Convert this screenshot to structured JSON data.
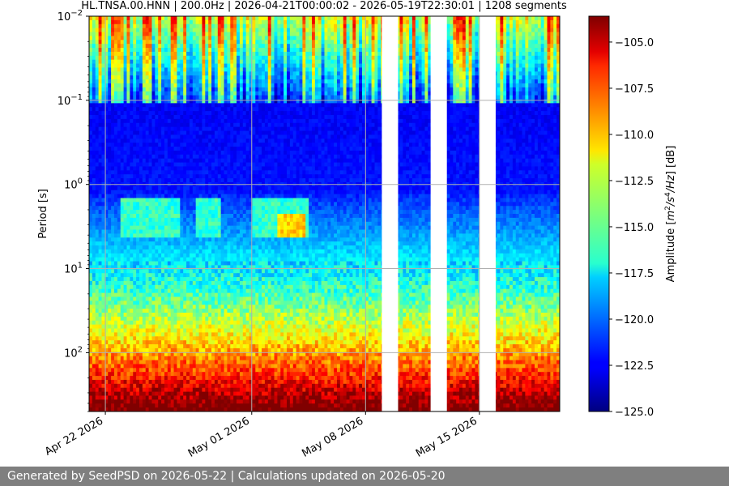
{
  "chart_data": {
    "type": "heatmap",
    "title": "HL.TNSA.00.HNN | 200.0Hz | 2026-04-21T00:00:02 - 2026-05-19T22:30:01 | 1208 segments",
    "xlabel": "",
    "ylabel": "Period [s]",
    "x_range": [
      "2026-04-21T00:00:02",
      "2026-05-19T22:30:01"
    ],
    "y_scale": "log",
    "y_inverted": true,
    "ylim": [
      0.01,
      500
    ],
    "x_ticks": [
      {
        "date": "2026-04-22",
        "label": "Apr 22 2026"
      },
      {
        "date": "2026-05-01",
        "label": "May 01 2026"
      },
      {
        "date": "2026-05-08",
        "label": "May 08 2026"
      },
      {
        "date": "2026-05-15",
        "label": "May 15 2026"
      }
    ],
    "y_ticks": [
      {
        "value": 0.01,
        "base": "10",
        "exp": "−2"
      },
      {
        "value": 0.1,
        "base": "10",
        "exp": "−1"
      },
      {
        "value": 1,
        "base": "10",
        "exp": "0"
      },
      {
        "value": 10,
        "base": "10",
        "exp": "1"
      },
      {
        "value": 100,
        "base": "10",
        "exp": "2"
      }
    ],
    "data_gaps": [
      [
        "2026-05-09T00:00:00",
        "2026-05-10T00:00:00"
      ],
      [
        "2026-05-12T00:00:00",
        "2026-05-13T00:00:00"
      ],
      [
        "2026-05-15T00:00:00",
        "2026-05-16T00:00:00"
      ]
    ],
    "colorbar": {
      "label_prefix": "Amplitude [",
      "label_unit_parts": [
        "m",
        "2",
        "/s",
        "4",
        "/Hz",
        "] [dB]"
      ],
      "range": [
        -125.0,
        -103.6
      ],
      "ticks": [
        -105.0,
        -107.5,
        -110.0,
        -112.5,
        -115.0,
        -117.5,
        -120.0,
        -122.5,
        -125.0
      ],
      "tick_labels": [
        "−105.0",
        "−107.5",
        "−110.0",
        "−112.5",
        "−115.0",
        "−117.5",
        "−120.0",
        "−122.5",
        "−125.0"
      ],
      "colormap": "jet"
    },
    "grid": true
  },
  "footer": {
    "text": "Generated by SeedPSD on 2026-05-22 | Calculations updated on 2026-05-20",
    "background": "#7f7f7f"
  }
}
